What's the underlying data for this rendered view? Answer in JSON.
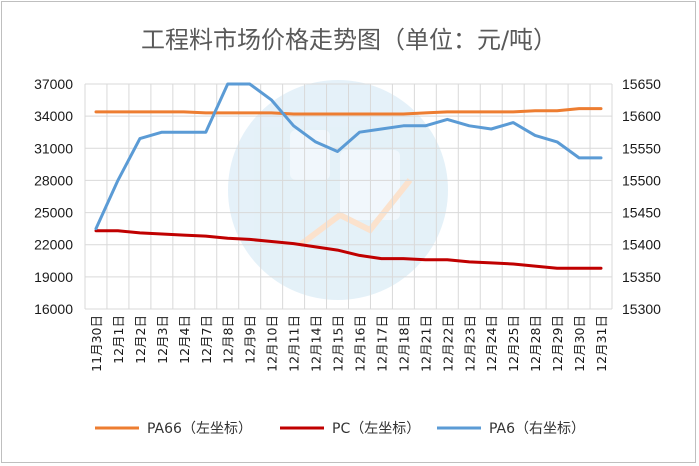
{
  "chart_data": {
    "type": "line",
    "title": "工程料市场价格走势图（单位：元/吨）",
    "categories": [
      "11月30日",
      "12月1日",
      "12月2日",
      "12月3日",
      "12月4日",
      "12月7日",
      "12月8日",
      "12月9日",
      "12月10日",
      "12月11日",
      "12月14日",
      "12月15日",
      "12月16日",
      "12月17日",
      "12月18日",
      "12月21日",
      "12月22日",
      "12月23日",
      "12月24日",
      "12月25日",
      "12月28日",
      "12月29日",
      "12月30日",
      "12月31日"
    ],
    "y_left": {
      "min": 16000,
      "max": 37000,
      "ticks": [
        16000,
        19000,
        22000,
        25000,
        28000,
        31000,
        34000,
        37000
      ]
    },
    "y_right": {
      "min": 15300,
      "max": 15650,
      "ticks": [
        15300,
        15350,
        15400,
        15450,
        15500,
        15550,
        15600,
        15650
      ]
    },
    "grid": true,
    "legend_position": "bottom",
    "series": [
      {
        "name": "PA66（左坐标）",
        "axis": "left",
        "color": "#ed7d31",
        "values": [
          34400,
          34400,
          34400,
          34400,
          34400,
          34300,
          34300,
          34300,
          34300,
          34200,
          34200,
          34200,
          34200,
          34200,
          34200,
          34300,
          34400,
          34400,
          34400,
          34400,
          34500,
          34500,
          34700,
          34700
        ]
      },
      {
        "name": "PC（左坐标）",
        "axis": "left",
        "color": "#c00000",
        "values": [
          23300,
          23300,
          23100,
          23000,
          22900,
          22800,
          22600,
          22500,
          22300,
          22100,
          21800,
          21500,
          21000,
          20700,
          20700,
          20600,
          20600,
          20400,
          20300,
          20200,
          20000,
          19800,
          19800,
          19800
        ]
      },
      {
        "name": "PA6（右坐标）",
        "axis": "right",
        "color": "#5b9bd5",
        "values": [
          15425,
          15500,
          15565,
          15575,
          15575,
          15575,
          15650,
          15650,
          15625,
          15585,
          15560,
          15545,
          15575,
          15580,
          15585,
          15585,
          15595,
          15585,
          15580,
          15590,
          15570,
          15560,
          15535,
          15535
        ]
      }
    ]
  }
}
